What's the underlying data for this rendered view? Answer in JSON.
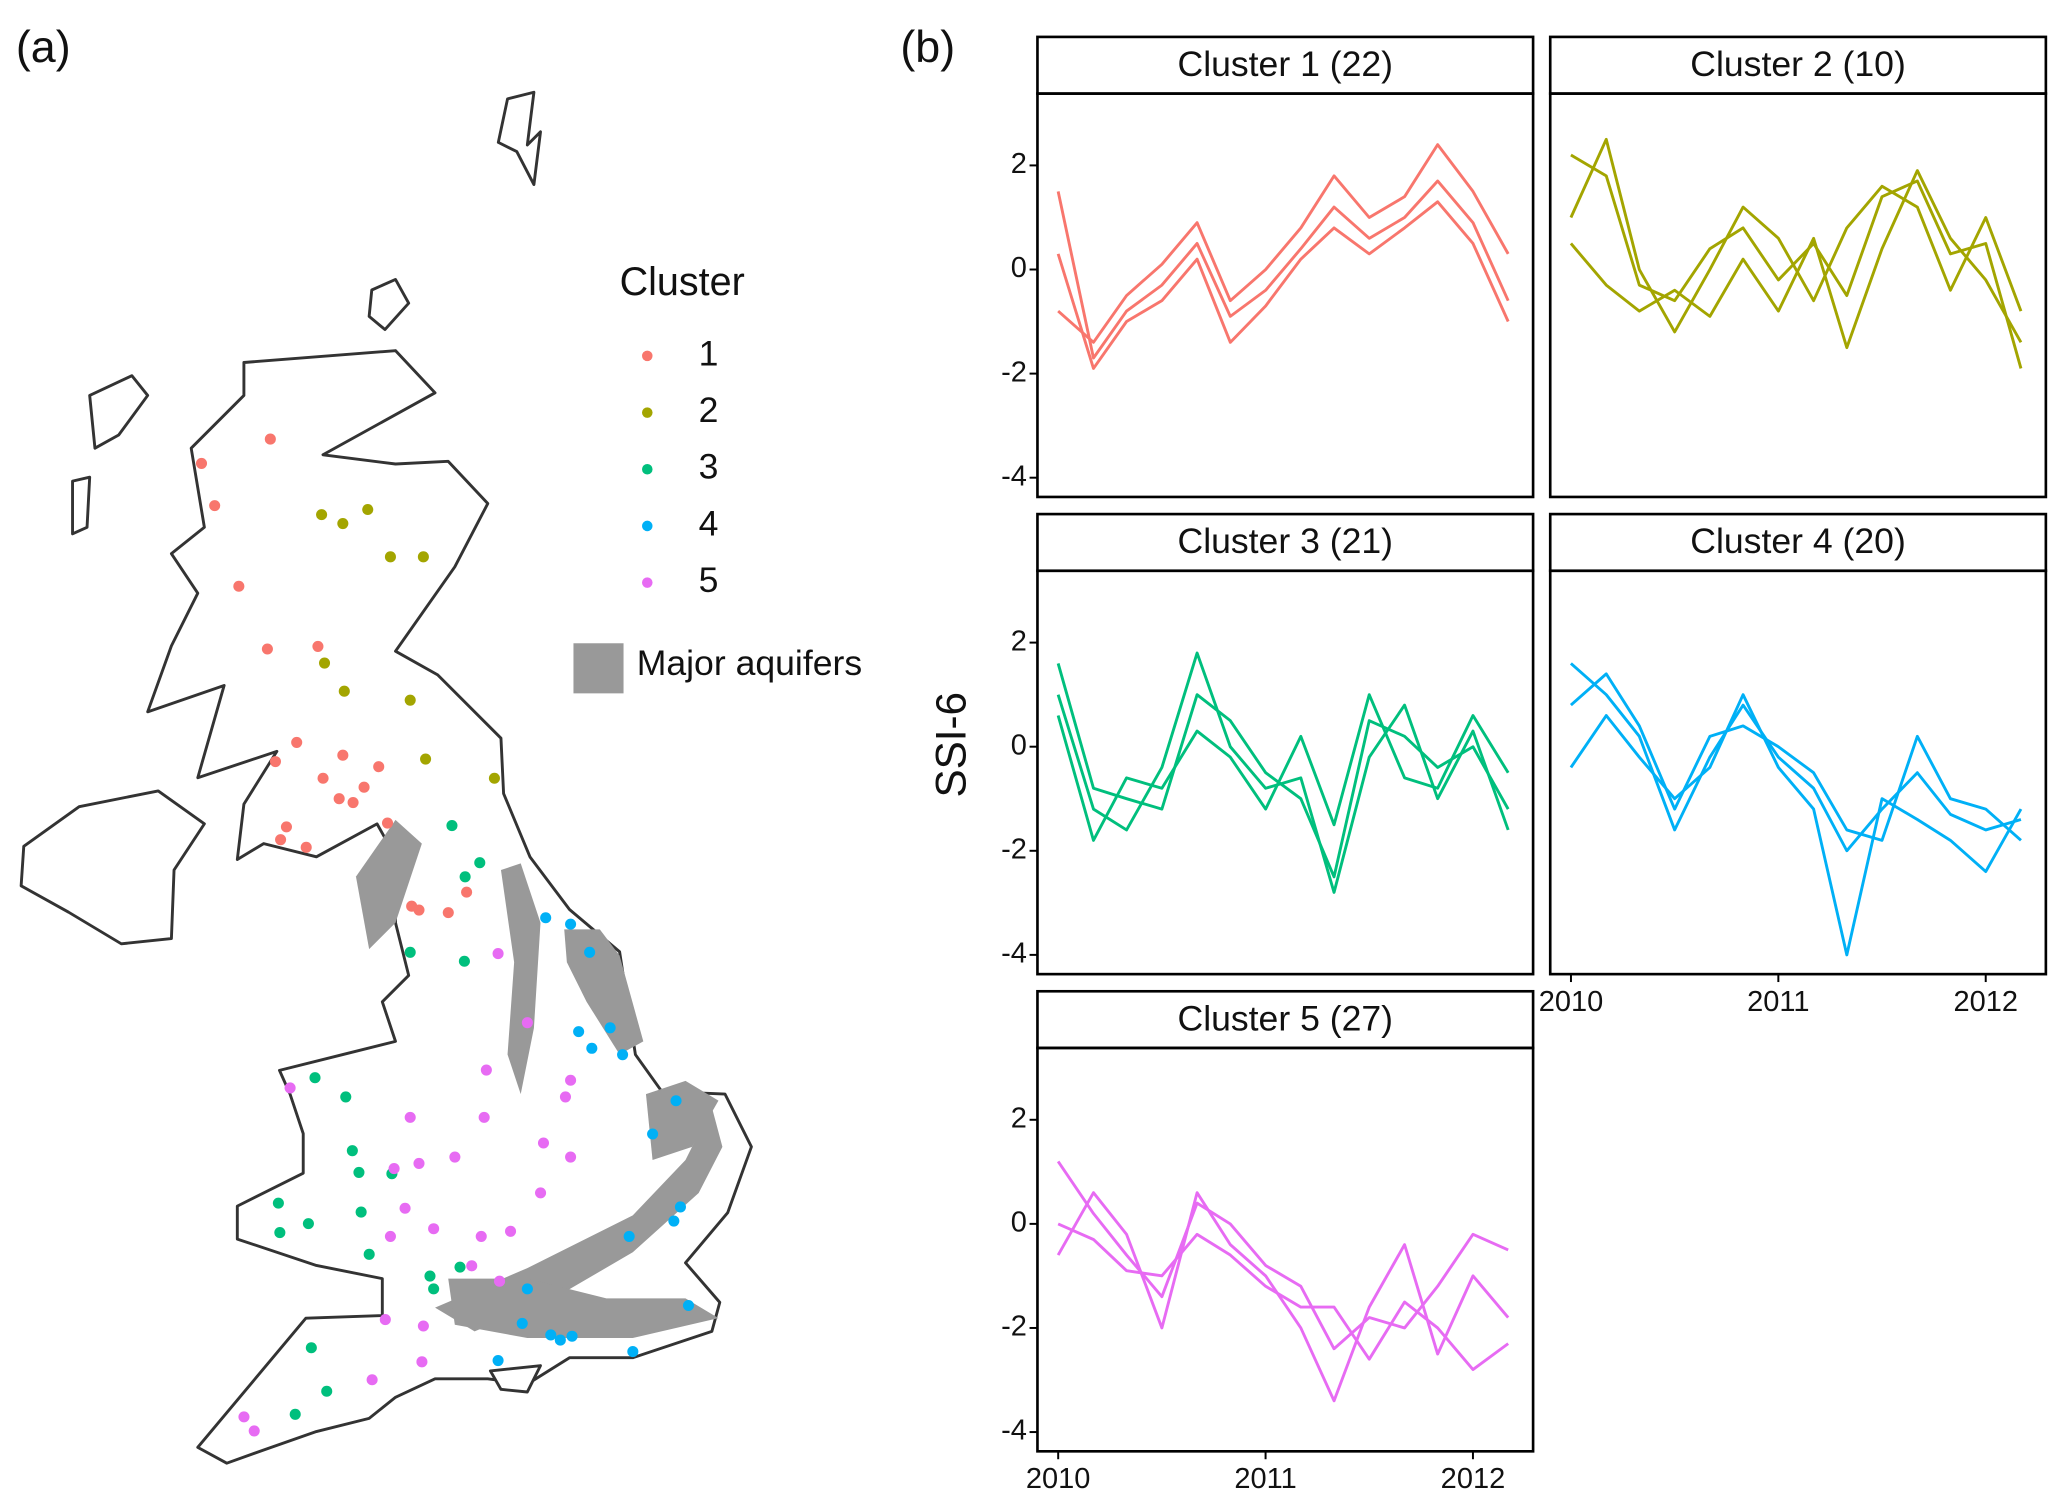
{
  "chart_data": [
    {
      "type": "map",
      "label": "(a)",
      "legend_title": "Cluster",
      "aquifer_label": "Major aquifers",
      "aquifer_color": "#999999",
      "series": [
        {
          "name": "1",
          "color": "#F8766D",
          "lon": [
            -4.78,
            -5.72,
            -5.54,
            -5.21,
            -4.82,
            -4.13,
            -4.42,
            -4.71,
            -3.79,
            -3.3,
            -4.06,
            -3.5,
            -3.84,
            -3.65,
            -3.18,
            -4.56,
            -4.64,
            -4.29,
            -2.85,
            -2.75,
            -2.35,
            -2.1
          ],
          "lat": [
            57.95,
            57.76,
            57.43,
            56.8,
            56.31,
            56.33,
            55.58,
            55.43,
            55.48,
            55.39,
            55.3,
            55.23,
            55.14,
            55.11,
            54.95,
            54.92,
            54.82,
            54.76,
            54.3,
            54.27,
            54.25,
            54.41
          ]
        },
        {
          "name": "2",
          "color": "#A3A500",
          "lon": [
            -4.08,
            -3.79,
            -3.45,
            -3.14,
            -2.69,
            -4.04,
            -3.77,
            -2.87,
            -2.66,
            -1.72
          ],
          "lat": [
            57.36,
            57.29,
            57.4,
            57.03,
            57.03,
            56.2,
            55.98,
            55.91,
            55.45,
            55.3
          ]
        },
        {
          "name": "3",
          "color": "#00BF7D",
          "lon": [
            -2.3,
            -1.92,
            -2.12,
            -2.87,
            -2.13,
            -4.17,
            -3.75,
            -3.66,
            -3.57,
            -3.12,
            -3.54,
            -4.67,
            -4.65,
            -4.26,
            -3.43,
            -2.6,
            -2.55,
            -2.19,
            -4.22,
            -4.01,
            -4.44
          ],
          "lat": [
            54.93,
            54.64,
            54.53,
            53.94,
            53.87,
            52.96,
            52.81,
            52.39,
            52.22,
            52.21,
            51.91,
            51.98,
            51.75,
            51.82,
            51.58,
            51.41,
            51.31,
            51.48,
            50.85,
            50.51,
            50.33
          ]
        },
        {
          "name": "4",
          "color": "#00B0F6",
          "lon": [
            -1.02,
            -0.68,
            -0.42,
            -0.57,
            -0.39,
            -0.14,
            0.03,
            0.76,
            0.44,
            0.82,
            0.73,
            0.12,
            -1.27,
            -1.34,
            -0.95,
            -0.66,
            -0.82,
            0.17,
            -1.67,
            0.93
          ],
          "lat": [
            54.21,
            54.16,
            53.94,
            53.32,
            53.19,
            53.35,
            53.14,
            52.78,
            52.52,
            51.95,
            51.84,
            51.72,
            51.31,
            51.04,
            50.95,
            50.94,
            50.91,
            50.82,
            50.75,
            51.18
          ]
        },
        {
          "name": "5",
          "color": "#E76BF3",
          "lon": [
            -1.67,
            -1.27,
            -1.83,
            -0.75,
            -2.87,
            -1.86,
            -1.05,
            -3.09,
            -2.75,
            -2.26,
            -0.68,
            -1.09,
            -2.94,
            -3.14,
            -2.55,
            -1.9,
            -1.5,
            -2.03,
            -1.65,
            -2.69,
            -3.21,
            -3.39,
            -2.71,
            -5.14,
            -5.0,
            -4.51,
            -0.68
          ],
          "lat": [
            53.93,
            53.39,
            53.02,
            52.81,
            52.65,
            52.65,
            52.45,
            52.25,
            52.29,
            52.34,
            52.34,
            52.06,
            51.94,
            51.72,
            51.78,
            51.72,
            51.76,
            51.49,
            51.37,
            51.02,
            51.07,
            50.6,
            50.74,
            50.31,
            50.2,
            52.88,
            52.94
          ]
        }
      ]
    },
    {
      "type": "line",
      "label": "(b)",
      "ylabel": "SSI-6",
      "xlim": [
        2009.9,
        2012.29
      ],
      "xticks": [
        2010,
        2011,
        2012
      ],
      "ylim": [
        -4.37,
        3.38
      ],
      "yticks": [
        -4,
        -2,
        0,
        2
      ],
      "x": [
        2010,
        2010.17,
        2010.33,
        2010.5,
        2010.67,
        2010.83,
        2011,
        2011.17,
        2011.33,
        2011.5,
        2011.67,
        2011.83,
        2012,
        2012.17
      ],
      "panels": [
        {
          "title": "Cluster 1 (22)",
          "color": "#F8766D",
          "series": [
            {
              "values": [
                1.5,
                -1.7,
                -0.8,
                -0.3,
                0.5,
                -0.9,
                -0.4,
                0.4,
                1.2,
                0.6,
                1.0,
                1.7,
                0.9,
                -0.6
              ]
            },
            {
              "values": [
                0.3,
                -1.9,
                -1.0,
                -0.6,
                0.2,
                -1.4,
                -0.7,
                0.2,
                0.8,
                0.3,
                0.8,
                1.3,
                0.5,
                -1.0
              ]
            },
            {
              "values": [
                -0.8,
                -1.4,
                -0.5,
                0.1,
                0.9,
                -0.6,
                0.0,
                0.8,
                1.8,
                1.0,
                1.4,
                2.4,
                1.5,
                0.3
              ]
            }
          ]
        },
        {
          "title": "Cluster 2 (10)",
          "color": "#A3A500",
          "series": [
            {
              "values": [
                2.2,
                1.8,
                -0.3,
                -0.6,
                0.4,
                0.8,
                -0.2,
                0.5,
                -0.5,
                1.4,
                1.7,
                0.3,
                0.5,
                -1.9
              ]
            },
            {
              "values": [
                1.0,
                2.5,
                0.0,
                -1.2,
                0.0,
                1.2,
                0.6,
                -0.6,
                0.8,
                1.6,
                1.2,
                -0.4,
                1.0,
                -0.8
              ]
            },
            {
              "values": [
                0.5,
                -0.3,
                -0.8,
                -0.4,
                -0.9,
                0.2,
                -0.8,
                0.6,
                -1.5,
                0.4,
                1.9,
                0.6,
                -0.2,
                -1.4
              ]
            }
          ]
        },
        {
          "title": "Cluster 3 (21)",
          "color": "#00BF7D",
          "series": [
            {
              "values": [
                1.6,
                -0.8,
                -1.0,
                -1.2,
                1.0,
                0.5,
                -0.5,
                -1.0,
                -2.5,
                0.5,
                0.2,
                -0.4,
                0.0,
                -1.2
              ]
            },
            {
              "values": [
                0.6,
                -1.8,
                -0.6,
                -0.8,
                0.3,
                -0.2,
                -1.2,
                0.2,
                -1.5,
                1.0,
                -0.6,
                -0.8,
                0.6,
                -0.5
              ]
            },
            {
              "values": [
                1.0,
                -1.2,
                -1.6,
                -0.4,
                1.8,
                0.0,
                -0.8,
                -0.6,
                -2.8,
                -0.2,
                0.8,
                -1.0,
                0.3,
                -1.6
              ]
            }
          ]
        },
        {
          "title": "Cluster 4 (20)",
          "color": "#00B0F6",
          "series": [
            {
              "values": [
                1.6,
                1.0,
                0.2,
                -1.6,
                -0.2,
                0.8,
                -0.2,
                -0.8,
                -2.0,
                -1.2,
                -0.5,
                -1.3,
                -1.6,
                -1.4
              ]
            },
            {
              "values": [
                0.8,
                1.4,
                0.4,
                -1.2,
                0.2,
                0.4,
                0.0,
                -0.5,
                -1.6,
                -1.8,
                0.2,
                -1.0,
                -1.2,
                -1.8
              ]
            },
            {
              "values": [
                -0.4,
                0.6,
                -0.2,
                -1.0,
                -0.4,
                1.0,
                -0.4,
                -1.2,
                -4.0,
                -1.0,
                -1.4,
                -1.8,
                -2.4,
                -1.2
              ]
            }
          ]
        },
        {
          "title": "Cluster 5 (27)",
          "color": "#E76BF3",
          "series": [
            {
              "values": [
                1.2,
                0.2,
                -0.6,
                -1.4,
                0.4,
                0.0,
                -0.8,
                -1.2,
                -2.4,
                -1.8,
                -2.0,
                -1.2,
                -0.2,
                -0.5
              ]
            },
            {
              "values": [
                0.0,
                -0.3,
                -0.9,
                -1.0,
                -0.2,
                -0.6,
                -1.2,
                -1.6,
                -1.6,
                -2.6,
                -1.5,
                -2.0,
                -2.8,
                -2.3
              ]
            },
            {
              "values": [
                -0.6,
                0.6,
                -0.2,
                -2.0,
                0.6,
                -0.4,
                -1.0,
                -2.0,
                -3.4,
                -1.6,
                -0.4,
                -2.5,
                -1.0,
                -1.8
              ]
            }
          ]
        }
      ]
    }
  ]
}
